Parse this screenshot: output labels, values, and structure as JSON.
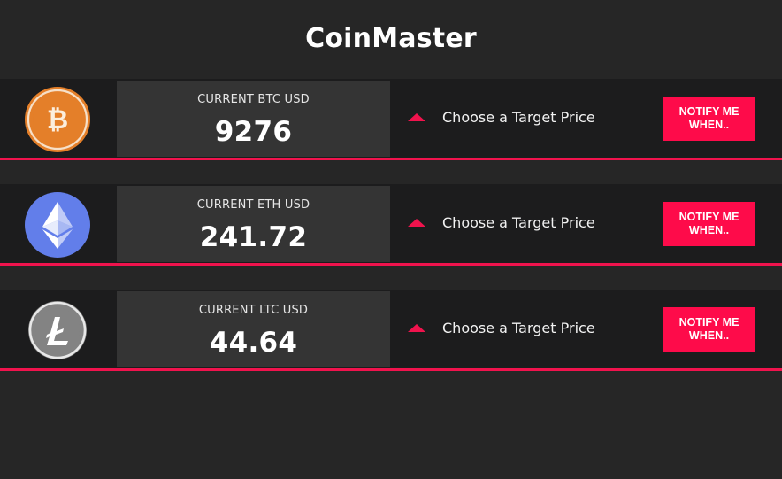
{
  "app": {
    "title": "CoinMaster"
  },
  "coins": [
    {
      "symbol": "BTC",
      "icon": "bitcoin-icon",
      "icon_color": "#e47f29",
      "price_label": "CURRENT BTC USD",
      "price": "9276",
      "target_text": "Choose a Target Price",
      "notify_label": "NOTIFY ME\nWHEN.."
    },
    {
      "symbol": "ETH",
      "icon": "ethereum-icon",
      "icon_color": "#627eea",
      "price_label": "CURRENT ETH USD",
      "price": "241.72",
      "target_text": "Choose a Target Price",
      "notify_label": "NOTIFY ME\nWHEN.."
    },
    {
      "symbol": "LTC",
      "icon": "litecoin-icon",
      "icon_color": "#838383",
      "price_label": "CURRENT LTC USD",
      "price": "44.64",
      "target_text": "Choose a Target Price",
      "notify_label": "NOTIFY ME\nWHEN.."
    }
  ],
  "colors": {
    "background": "#262626",
    "row_background": "#1c1c1d",
    "price_box": "#343434",
    "accent": "#f0134d",
    "button": "#fe0b4a"
  }
}
